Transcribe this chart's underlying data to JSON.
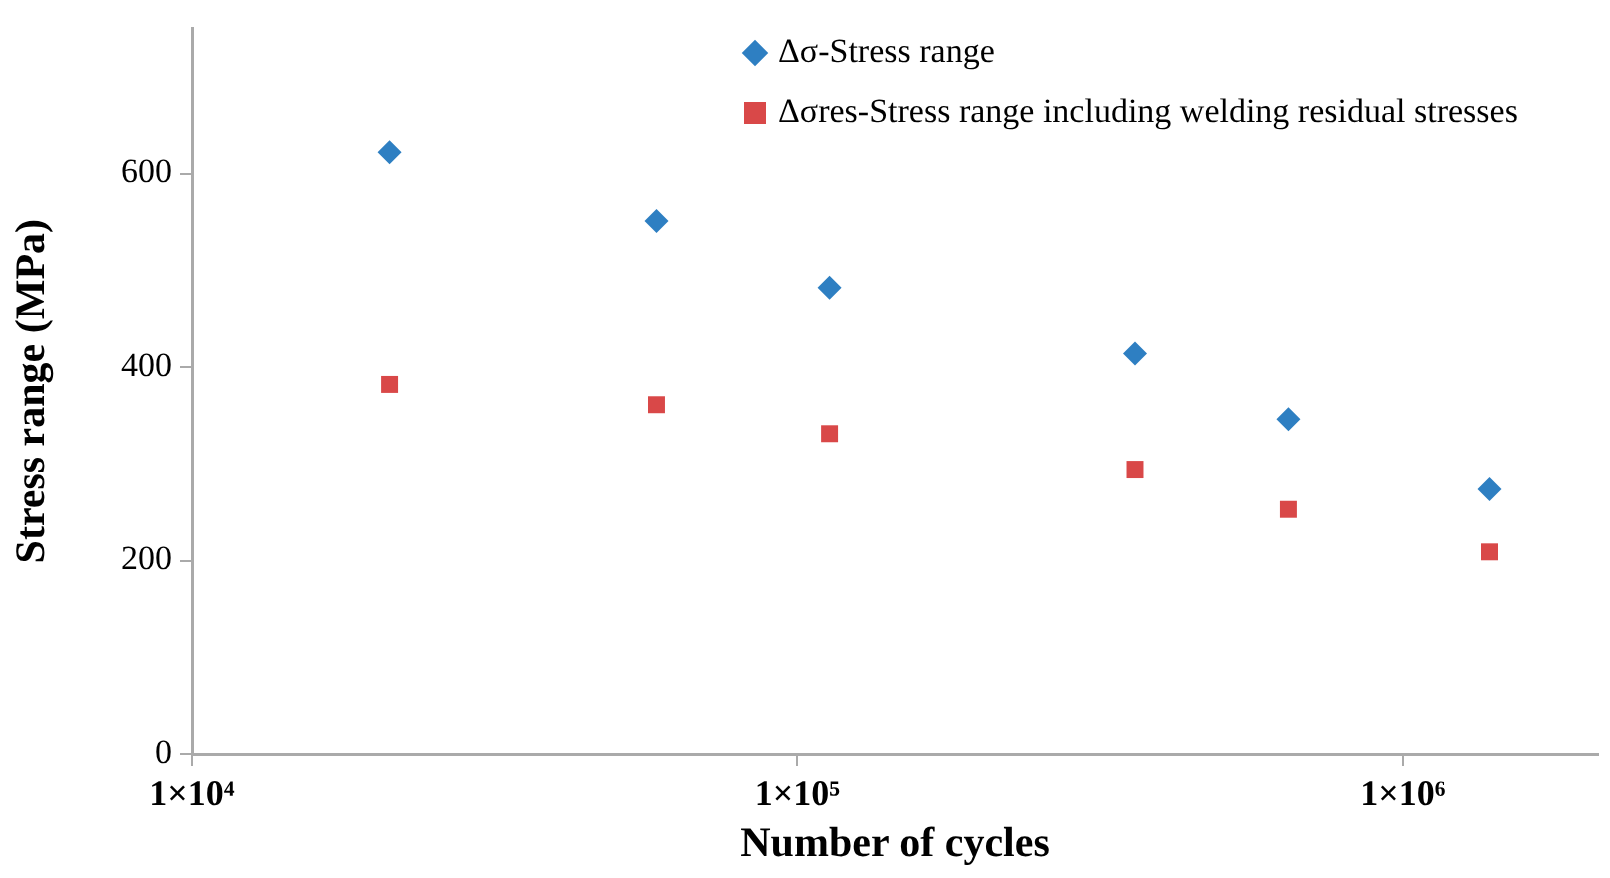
{
  "chart_data": {
    "type": "scatter",
    "xlabel": "Number of cycles",
    "ylabel": "Stress range (MPa)",
    "log": "x",
    "grid": false,
    "legend": "top right",
    "xlim": [
      10000,
      2100000
    ],
    "xticks": [
      {
        "value": 10000,
        "label": "1×10⁴"
      },
      {
        "value": 100000,
        "label": "1×10⁵"
      },
      {
        "value": 1000000,
        "label": "1×10⁶"
      }
    ],
    "ylim": [
      0,
      750
    ],
    "yticks": [
      0,
      200,
      400,
      600
    ],
    "series": [
      {
        "name": "Δσ-Stress range",
        "color": "#2e7fc2",
        "marker": "diamond",
        "x": [
          21200,
          58500,
          113000,
          361000,
          647000,
          1390000
        ],
        "values": [
          622,
          551,
          482,
          414,
          346,
          274
        ]
      },
      {
        "name": "Δσres-Stress range including welding residual stresses",
        "color": "#d94848",
        "marker": "square",
        "x": [
          21200,
          58500,
          113000,
          361000,
          647000,
          1390000
        ],
        "values": [
          382,
          361,
          331,
          294,
          253,
          209
        ]
      }
    ]
  }
}
